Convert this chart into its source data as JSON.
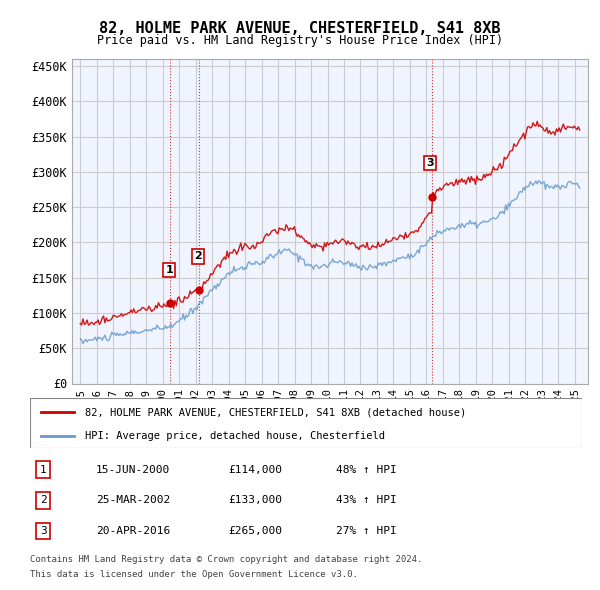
{
  "title": "82, HOLME PARK AVENUE, CHESTERFIELD, S41 8XB",
  "subtitle": "Price paid vs. HM Land Registry's House Price Index (HPI)",
  "legend_line1": "82, HOLME PARK AVENUE, CHESTERFIELD, S41 8XB (detached house)",
  "legend_line2": "HPI: Average price, detached house, Chesterfield",
  "transactions": [
    {
      "num": 1,
      "date": "15-JUN-2000",
      "price": 114000,
      "hpi_pct": "48% ↑ HPI",
      "x_year": 2000.46
    },
    {
      "num": 2,
      "date": "25-MAR-2002",
      "price": 133000,
      "hpi_pct": "43% ↑ HPI",
      "x_year": 2002.23
    },
    {
      "num": 3,
      "date": "20-APR-2016",
      "price": 265000,
      "hpi_pct": "27% ↑ HPI",
      "x_year": 2016.31
    }
  ],
  "footer_line1": "Contains HM Land Registry data © Crown copyright and database right 2024.",
  "footer_line2": "This data is licensed under the Open Government Licence v3.0.",
  "property_color": "#cc0000",
  "hpi_color": "#6699cc",
  "vline_color": "#cc0000",
  "background_color": "#ffffff",
  "grid_color": "#cccccc",
  "ylim": [
    0,
    460000
  ],
  "xlim_start": 1994.5,
  "xlim_end": 2025.8,
  "yticks": [
    0,
    50000,
    100000,
    150000,
    200000,
    250000,
    300000,
    350000,
    400000,
    450000
  ],
  "ytick_labels": [
    "£0",
    "£50K",
    "£100K",
    "£150K",
    "£200K",
    "£250K",
    "£300K",
    "£350K",
    "£400K",
    "£450K"
  ],
  "xticks": [
    1995,
    1996,
    1997,
    1998,
    1999,
    2000,
    2001,
    2002,
    2003,
    2004,
    2005,
    2006,
    2007,
    2008,
    2009,
    2010,
    2011,
    2012,
    2013,
    2014,
    2015,
    2016,
    2017,
    2018,
    2019,
    2020,
    2021,
    2022,
    2023,
    2024,
    2025
  ]
}
